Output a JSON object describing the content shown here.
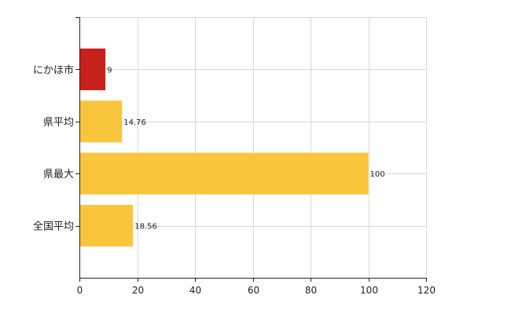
{
  "chart_data": {
    "type": "bar",
    "orientation": "horizontal",
    "categories": [
      "にかほ市",
      "県平均",
      "県最大",
      "全国平均"
    ],
    "values": [
      9,
      14.76,
      100,
      18.56
    ],
    "value_labels": [
      "9",
      "14.76",
      "100",
      "18.56"
    ],
    "colors": [
      "#c8201a",
      "#f9c53c",
      "#f9c53c",
      "#f9c53c"
    ],
    "xlim": [
      0,
      120
    ],
    "xticks": [
      0,
      20,
      40,
      60,
      80,
      100,
      120
    ],
    "xtick_labels": [
      "0",
      "20",
      "40",
      "60",
      "80",
      "100",
      "120"
    ],
    "grid": true,
    "legend": "none"
  }
}
